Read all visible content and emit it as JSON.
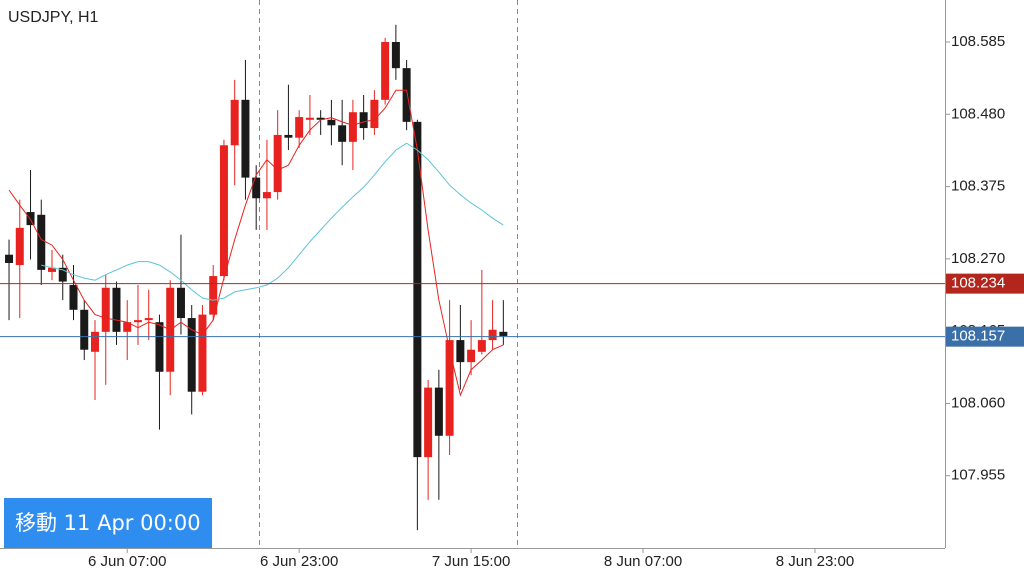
{
  "chart_data": {
    "type": "candlestick",
    "title": "USDJPY, H1",
    "button": "移動 11 Apr 00:00",
    "ylim": [
      107.85,
      108.646
    ],
    "yticks": [
      108.585,
      {
        "value": 108.48,
        "label": "108.480"
      },
      108.375,
      {
        "value": 108.27,
        "label": "108.270"
      },
      108.165,
      {
        "value": 108.06,
        "label": "108.060"
      },
      107.955
    ],
    "xlim": [
      -0.84,
      87.1
    ],
    "xticks": [
      {
        "value": 11,
        "label": "6 Jun 07:00"
      },
      {
        "value": 27,
        "label": "6 Jun 23:00"
      },
      {
        "value": 43,
        "label": "7 Jun 15:00"
      },
      {
        "value": 59,
        "label": "8 Jun 07:00"
      },
      {
        "value": 75,
        "label": "8 Jun 23:00"
      }
    ],
    "up_color": "#e8231f",
    "down_color": "#1a1a1a",
    "open": [
      108.276,
      108.261,
      108.338,
      108.334,
      108.251,
      108.257,
      108.232,
      108.196,
      108.135,
      108.164,
      108.228,
      108.164,
      108.178,
      108.181,
      108.178,
      108.106,
      108.228,
      108.184,
      108.077,
      108.189,
      108.245,
      108.435,
      108.501,
      108.388,
      108.358,
      108.367,
      108.45,
      108.446,
      108.472,
      108.475,
      108.472,
      108.464,
      108.44,
      108.483,
      108.46,
      108.501,
      108.585,
      108.547,
      108.469,
      107.982,
      108.083,
      108.013,
      108.152,
      108.12,
      108.135,
      108.152,
      108.164
    ],
    "high": [
      108.298,
      108.356,
      108.399,
      108.356,
      108.283,
      108.276,
      108.261,
      108.21,
      108.181,
      108.247,
      108.237,
      108.21,
      108.232,
      108.225,
      108.189,
      108.239,
      108.305,
      108.203,
      108.203,
      108.261,
      108.443,
      108.53,
      108.559,
      108.406,
      108.443,
      108.486,
      108.523,
      108.486,
      108.508,
      108.486,
      108.501,
      108.501,
      108.501,
      108.508,
      108.515,
      108.591,
      108.61,
      108.559,
      108.472,
      108.094,
      108.109,
      108.21,
      108.203,
      108.181,
      108.254,
      108.21,
      108.21
    ],
    "low": [
      108.181,
      108.184,
      108.269,
      108.232,
      108.239,
      108.21,
      108.181,
      108.123,
      108.065,
      108.087,
      108.145,
      108.123,
      108.145,
      108.152,
      108.022,
      108.072,
      108.16,
      108.044,
      108.072,
      108.181,
      108.239,
      108.377,
      108.356,
      108.312,
      108.312,
      108.356,
      108.428,
      108.431,
      108.45,
      108.45,
      108.435,
      108.406,
      108.399,
      108.443,
      108.45,
      108.494,
      108.53,
      108.457,
      107.876,
      107.92,
      107.92,
      107.985,
      108.08,
      108.101,
      108.131,
      108.138,
      108.145
    ],
    "close": [
      108.264,
      108.315,
      108.319,
      108.254,
      108.257,
      108.237,
      108.196,
      108.138,
      108.164,
      108.228,
      108.164,
      108.178,
      108.181,
      108.184,
      108.106,
      108.228,
      108.184,
      108.077,
      108.189,
      108.245,
      108.435,
      108.501,
      108.388,
      108.358,
      108.367,
      108.45,
      108.446,
      108.476,
      108.475,
      108.472,
      108.464,
      108.44,
      108.483,
      108.46,
      108.501,
      108.585,
      108.547,
      108.469,
      107.982,
      108.083,
      108.013,
      108.152,
      108.12,
      108.138,
      108.152,
      108.167,
      108.158
    ],
    "lines": [
      {
        "color": "#e8231f",
        "values": [
          108.37,
          108.348,
          108.327,
          108.298,
          108.29,
          108.269,
          108.239,
          108.21,
          108.189,
          108.184,
          108.181,
          108.178,
          108.17,
          108.178,
          108.174,
          108.167,
          108.178,
          108.167,
          108.16,
          108.181,
          108.242,
          108.298,
          108.348,
          108.392,
          108.414,
          108.399,
          108.406,
          108.435,
          108.457,
          108.472,
          108.475,
          108.469,
          108.464,
          108.469,
          108.472,
          108.489,
          108.515,
          108.515,
          108.428,
          108.312,
          108.21,
          108.138,
          108.072,
          108.109,
          108.123,
          108.138,
          108.145
        ]
      },
      {
        "color": "#5bc4d8",
        "values": [
          null,
          null,
          null,
          108.261,
          108.257,
          108.254,
          108.247,
          108.242,
          108.239,
          108.247,
          108.254,
          108.261,
          108.266,
          108.266,
          108.261,
          108.251,
          108.239,
          108.225,
          108.213,
          108.21,
          108.213,
          108.222,
          108.225,
          108.228,
          108.232,
          108.242,
          108.257,
          108.276,
          108.295,
          108.312,
          108.329,
          108.345,
          108.36,
          108.374,
          108.392,
          108.411,
          108.428,
          108.438,
          108.428,
          108.414,
          108.396,
          108.377,
          108.363,
          108.351,
          108.341,
          108.329,
          108.319
        ]
      }
    ],
    "price_lines": [
      {
        "value": 108.234,
        "color": "#b3261e"
      },
      {
        "value": 108.157,
        "color": "#3a6fa8"
      }
    ]
  }
}
